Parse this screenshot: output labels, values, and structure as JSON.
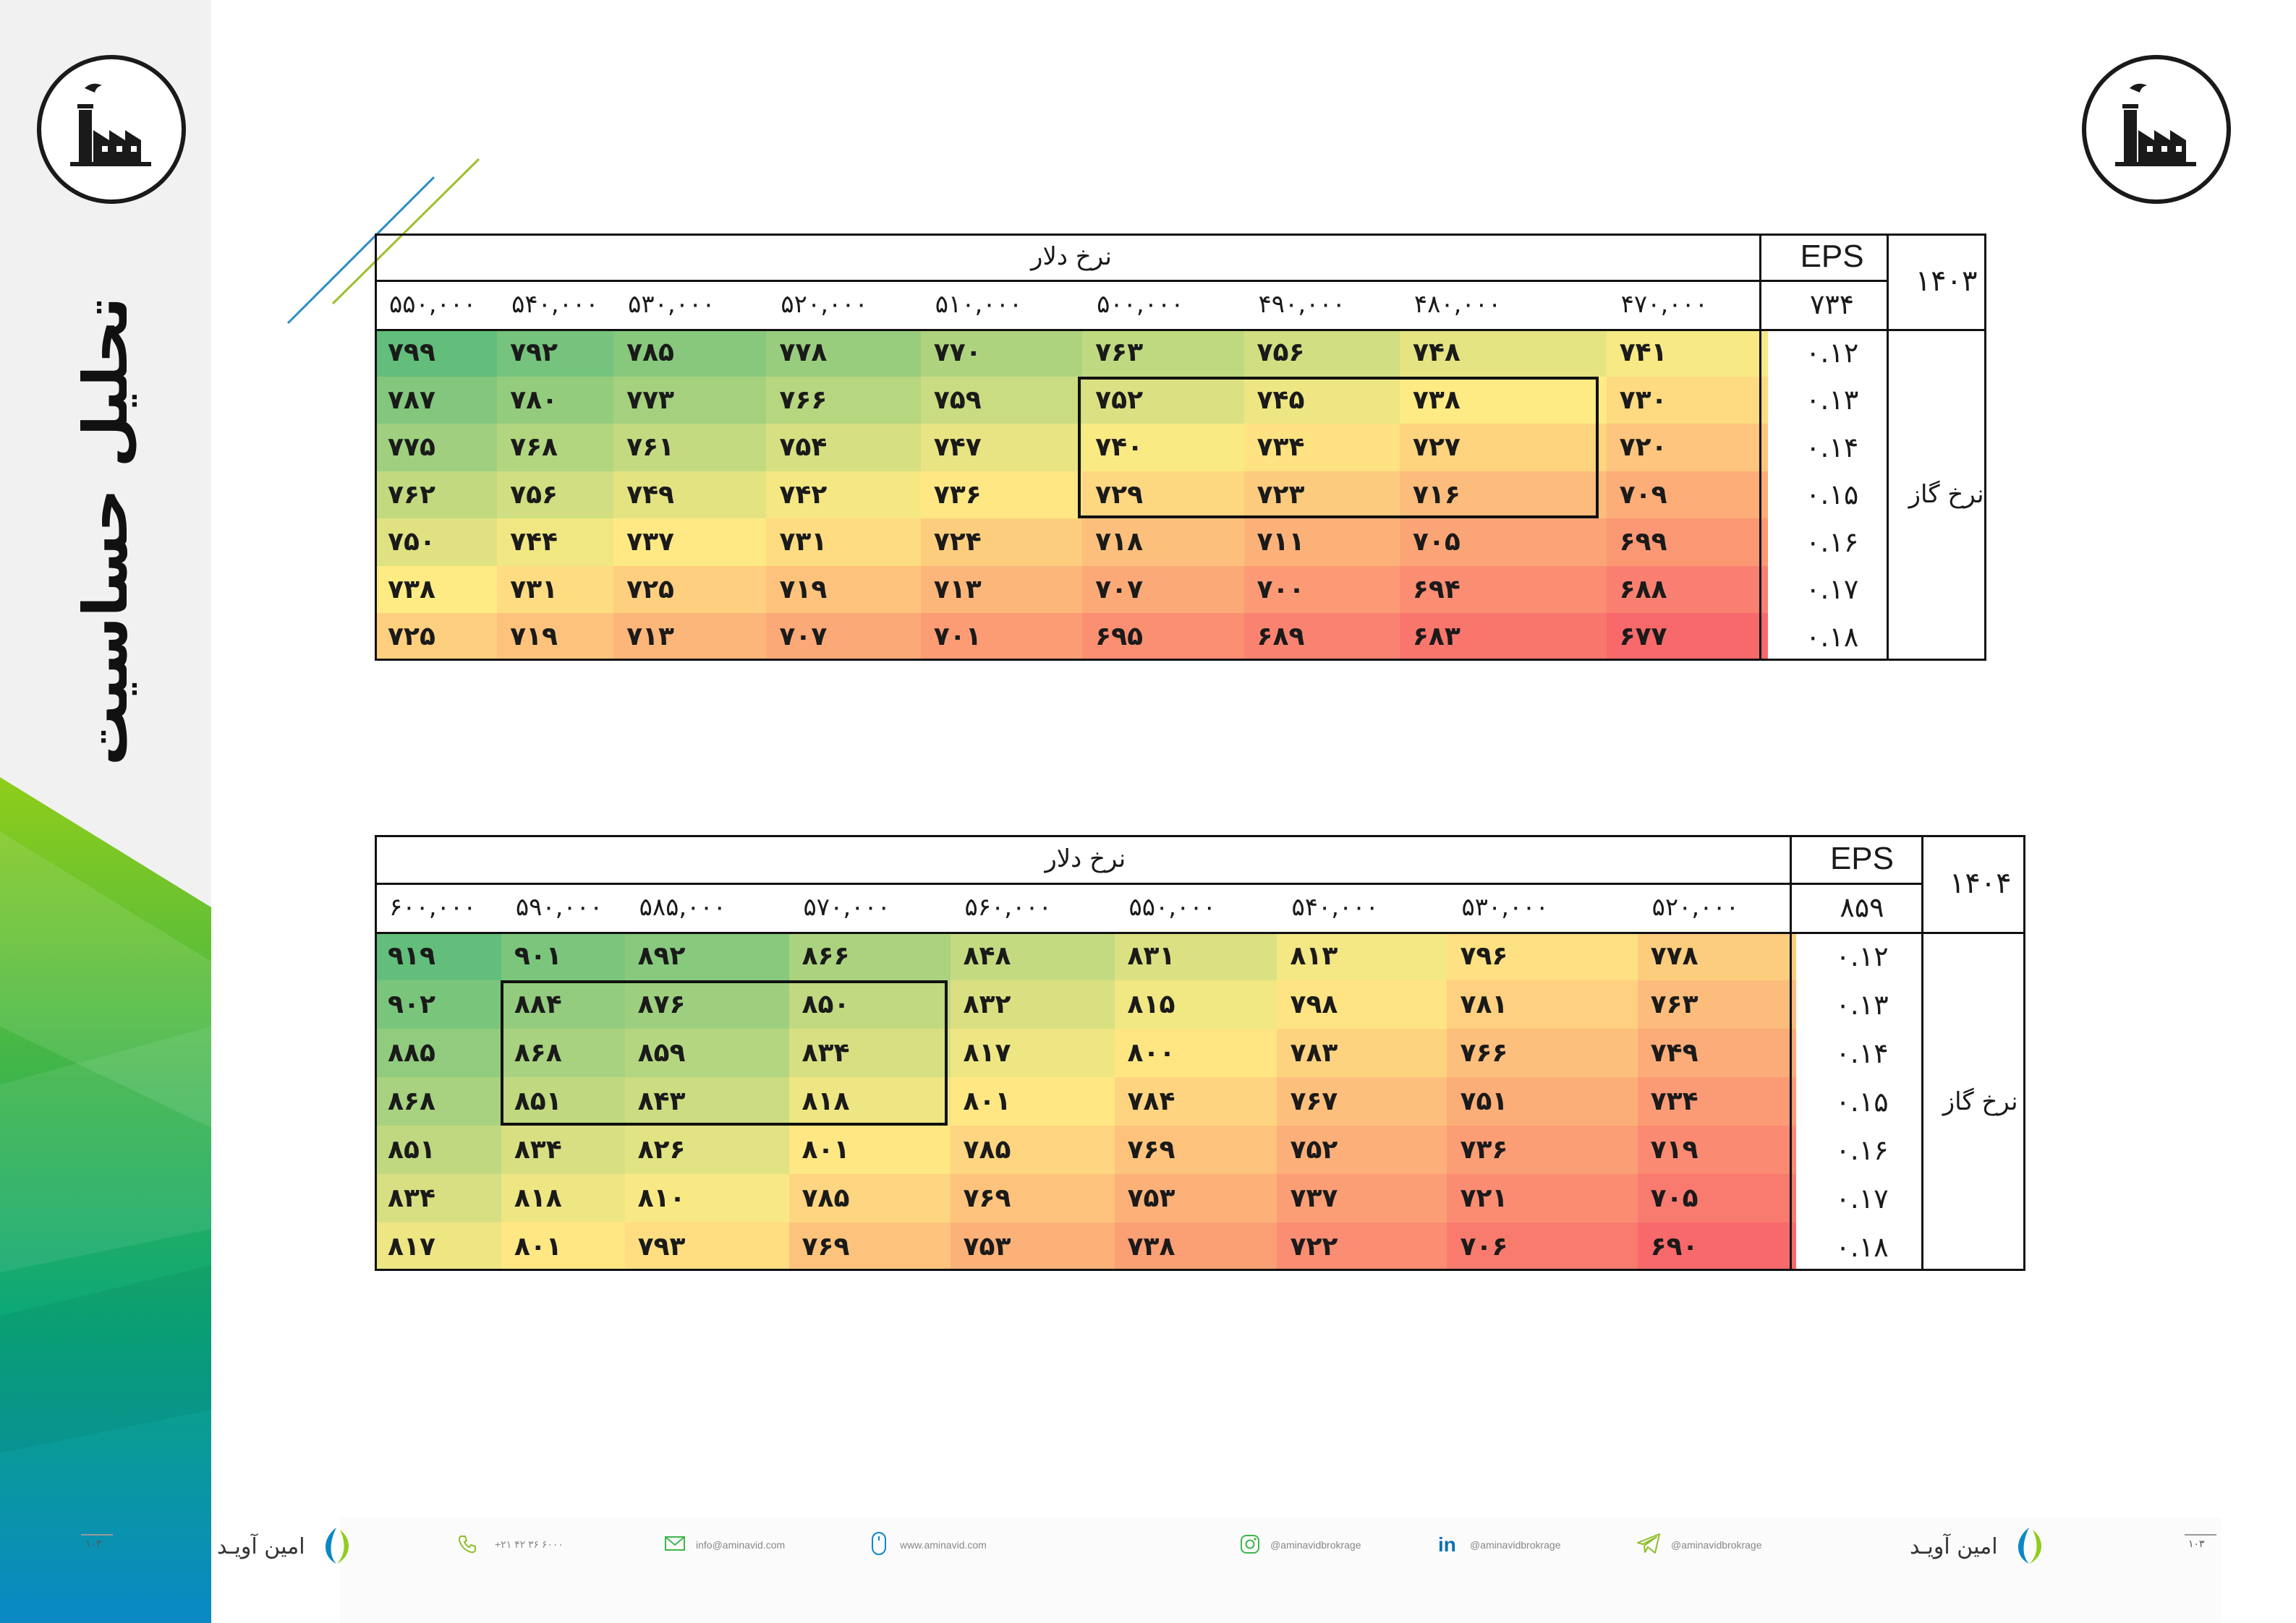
{
  "sidebar": {
    "title": "تحلیل حساسیت"
  },
  "tables": [
    {
      "year": "۱۴۰۳",
      "eps_label": "EPS",
      "eps_value": "۷۳۴",
      "col_header": "نرخ دلار",
      "row_header": "نرخ گاز",
      "columns": [
        "۵۵۰,۰۰۰",
        "۵۴۰,۰۰۰",
        "۵۳۰,۰۰۰",
        "۵۲۰,۰۰۰",
        "۵۱۰,۰۰۰",
        "۵۰۰,۰۰۰",
        "۴۹۰,۰۰۰",
        "۴۸۰,۰۰۰",
        "۴۷۰,۰۰۰"
      ],
      "rows": [
        "۰.۱۲",
        "۰.۱۳",
        "۰.۱۴",
        "۰.۱۵",
        "۰.۱۶",
        "۰.۱۷",
        "۰.۱۸"
      ],
      "values": [
        [
          "۷۹۹",
          "۷۹۲",
          "۷۸۵",
          "۷۷۸",
          "۷۷۰",
          "۷۶۳",
          "۷۵۶",
          "۷۴۸",
          "۷۴۱"
        ],
        [
          "۷۸۷",
          "۷۸۰",
          "۷۷۳",
          "۷۶۶",
          "۷۵۹",
          "۷۵۲",
          "۷۴۵",
          "۷۳۸",
          "۷۳۰"
        ],
        [
          "۷۷۵",
          "۷۶۸",
          "۷۶۱",
          "۷۵۴",
          "۷۴۷",
          "۷۴۰",
          "۷۳۴",
          "۷۲۷",
          "۷۲۰"
        ],
        [
          "۷۶۲",
          "۷۵۶",
          "۷۴۹",
          "۷۴۲",
          "۷۳۶",
          "۷۲۹",
          "۷۲۳",
          "۷۱۶",
          "۷۰۹"
        ],
        [
          "۷۵۰",
          "۷۴۴",
          "۷۳۷",
          "۷۳۱",
          "۷۲۴",
          "۷۱۸",
          "۷۱۱",
          "۷۰۵",
          "۶۹۹"
        ],
        [
          "۷۳۸",
          "۷۳۱",
          "۷۲۵",
          "۷۱۹",
          "۷۱۳",
          "۷۰۷",
          "۷۰۰",
          "۶۹۴",
          "۶۸۸"
        ],
        [
          "۷۲۵",
          "۷۱۹",
          "۷۱۳",
          "۷۰۷",
          "۷۰۱",
          "۶۹۵",
          "۶۸۹",
          "۶۸۳",
          "۶۷۷"
        ]
      ],
      "numeric": [
        [
          799,
          792,
          785,
          778,
          770,
          763,
          756,
          748,
          741
        ],
        [
          787,
          780,
          773,
          766,
          759,
          752,
          745,
          738,
          730
        ],
        [
          775,
          768,
          761,
          754,
          747,
          740,
          734,
          727,
          720
        ],
        [
          762,
          756,
          749,
          742,
          736,
          729,
          723,
          716,
          709
        ],
        [
          750,
          744,
          737,
          731,
          724,
          718,
          711,
          705,
          699
        ],
        [
          738,
          731,
          725,
          719,
          713,
          707,
          700,
          694,
          688
        ],
        [
          725,
          719,
          713,
          707,
          701,
          695,
          689,
          683,
          677
        ]
      ]
    },
    {
      "year": "۱۴۰۴",
      "eps_label": "EPS",
      "eps_value": "۸۵۹",
      "col_header": "نرخ دلار",
      "row_header": "نرخ گاز",
      "columns": [
        "۶۰۰,۰۰۰",
        "۵۹۰,۰۰۰",
        "۵۸۵,۰۰۰",
        "۵۷۰,۰۰۰",
        "۵۶۰,۰۰۰",
        "۵۵۰,۰۰۰",
        "۵۴۰,۰۰۰",
        "۵۳۰,۰۰۰",
        "۵۲۰,۰۰۰"
      ],
      "rows": [
        "۰.۱۲",
        "۰.۱۳",
        "۰.۱۴",
        "۰.۱۵",
        "۰.۱۶",
        "۰.۱۷",
        "۰.۱۸"
      ],
      "values": [
        [
          "۹۱۹",
          "۹۰۱",
          "۸۹۲",
          "۸۶۶",
          "۸۴۸",
          "۸۳۱",
          "۸۱۳",
          "۷۹۶",
          "۷۷۸"
        ],
        [
          "۹۰۲",
          "۸۸۴",
          "۸۷۶",
          "۸۵۰",
          "۸۳۲",
          "۸۱۵",
          "۷۹۸",
          "۷۸۱",
          "۷۶۳"
        ],
        [
          "۸۸۵",
          "۸۶۸",
          "۸۵۹",
          "۸۳۴",
          "۸۱۷",
          "۸۰۰",
          "۷۸۳",
          "۷۶۶",
          "۷۴۹"
        ],
        [
          "۸۶۸",
          "۸۵۱",
          "۸۴۳",
          "۸۱۸",
          "۸۰۱",
          "۷۸۴",
          "۷۶۷",
          "۷۵۱",
          "۷۳۴"
        ],
        [
          "۸۵۱",
          "۸۳۴",
          "۸۲۶",
          "۸۰۱",
          "۷۸۵",
          "۷۶۹",
          "۷۵۲",
          "۷۳۶",
          "۷۱۹"
        ],
        [
          "۸۳۴",
          "۸۱۸",
          "۸۱۰",
          "۷۸۵",
          "۷۶۹",
          "۷۵۳",
          "۷۳۷",
          "۷۲۱",
          "۷۰۵"
        ],
        [
          "۸۱۷",
          "۸۰۱",
          "۷۹۳",
          "۷۶۹",
          "۷۵۳",
          "۷۳۸",
          "۷۲۲",
          "۷۰۶",
          "۶۹۰"
        ]
      ],
      "numeric": [
        [
          919,
          901,
          892,
          866,
          848,
          831,
          813,
          796,
          778
        ],
        [
          902,
          884,
          876,
          850,
          832,
          815,
          798,
          781,
          763
        ],
        [
          885,
          868,
          859,
          834,
          817,
          800,
          783,
          766,
          749
        ],
        [
          868,
          851,
          843,
          818,
          801,
          784,
          767,
          751,
          734
        ],
        [
          851,
          834,
          826,
          801,
          785,
          769,
          752,
          736,
          719
        ],
        [
          834,
          818,
          810,
          785,
          769,
          753,
          737,
          721,
          705
        ],
        [
          817,
          801,
          793,
          769,
          753,
          738,
          722,
          706,
          690
        ]
      ]
    }
  ],
  "colors": {
    "high": "#63be7b",
    "mid": "#ffeb84",
    "low": "#f8696b"
  },
  "footer": {
    "phone": "+۲۱ ۴۲ ۳۶ ۶۰۰۰",
    "email": "info@aminavid.com",
    "website": "www.aminavid.com",
    "instagram": "@aminavidbrokrage",
    "linkedin": "@aminavidbrokrage",
    "telegram": "@aminavidbrokrage",
    "brand_left": "امین آویـد",
    "brand_right": "امین آویـد",
    "page_left": "۱۰۳",
    "page_right": "۱۰۳"
  }
}
